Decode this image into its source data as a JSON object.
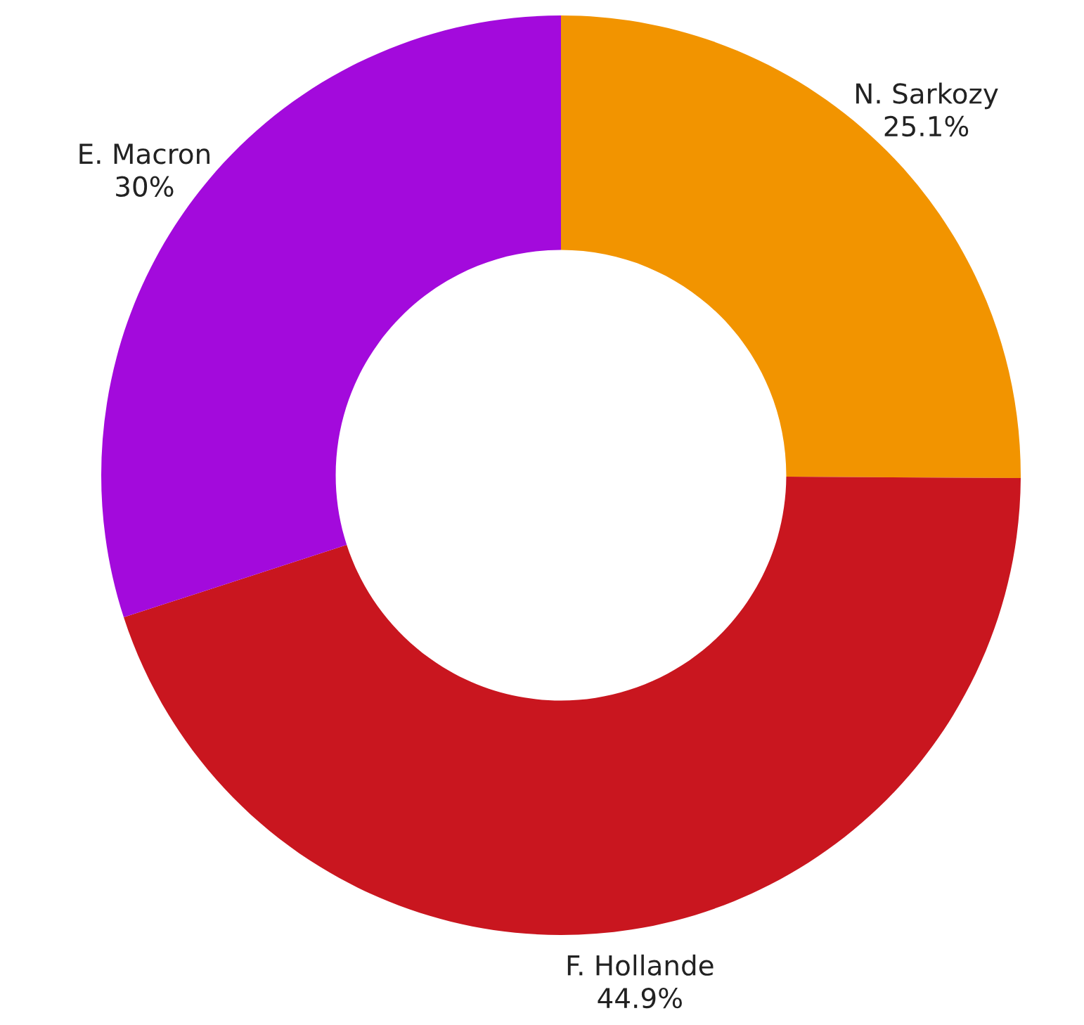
{
  "chart_data": {
    "type": "donut",
    "categories": [
      "N. Sarkozy",
      "F. Hollande",
      "E. Macron"
    ],
    "values": [
      25.1,
      44.9,
      30
    ],
    "colors": [
      "#f29400",
      "#c9161f",
      "#a30adc"
    ],
    "value_labels": [
      "25.1%",
      "44.9%",
      "30%"
    ]
  }
}
